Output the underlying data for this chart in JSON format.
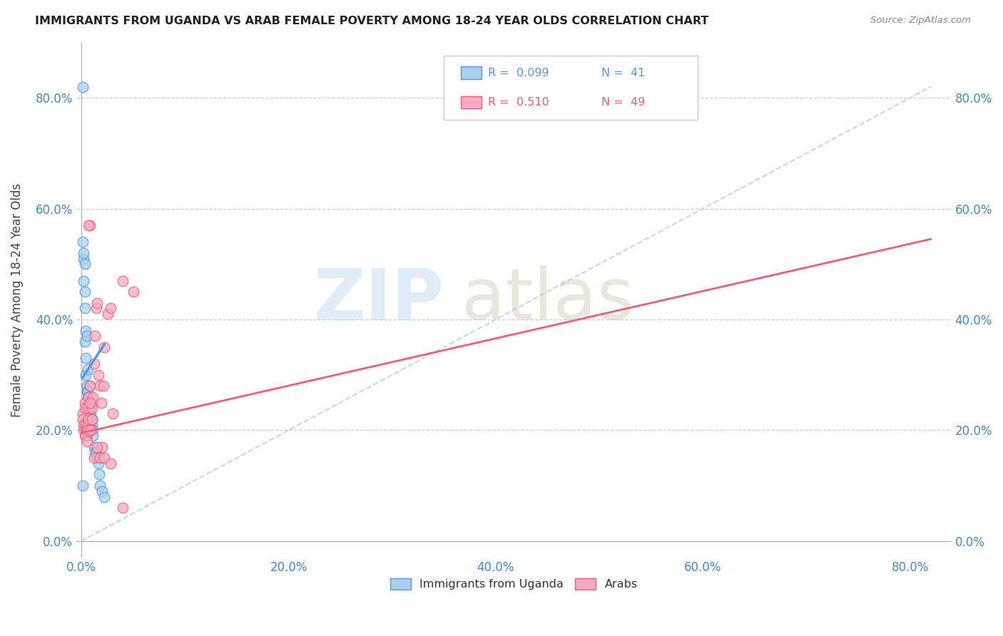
{
  "title": "IMMIGRANTS FROM UGANDA VS ARAB FEMALE POVERTY AMONG 18-24 YEAR OLDS CORRELATION CHART",
  "source": "Source: ZipAtlas.com",
  "xlabel_ticks": [
    "0.0%",
    "20.0%",
    "40.0%",
    "60.0%",
    "80.0%"
  ],
  "ylabel_ticks": [
    "0.0%",
    "20.0%",
    "40.0%",
    "60.0%",
    "80.0%"
  ],
  "xlabel_tick_vals": [
    0.0,
    0.2,
    0.4,
    0.6,
    0.8
  ],
  "ylabel_tick_vals": [
    0.0,
    0.2,
    0.4,
    0.6,
    0.8
  ],
  "xlim": [
    -0.005,
    0.84
  ],
  "ylim": [
    -0.03,
    0.9
  ],
  "legend_label1": "Immigrants from Uganda",
  "legend_label2": "Arabs",
  "R1": "0.099",
  "N1": "41",
  "R2": "0.510",
  "N2": "49",
  "color_uganda": "#aacfee",
  "color_arab": "#f5aac0",
  "line_color_uganda": "#5599dd",
  "line_color_arab": "#e8607a",
  "diag_line_color": "#c0d4ec",
  "ylabel": "Female Poverty Among 18-24 Year Olds",
  "uganda_x": [
    0.001,
    0.001,
    0.002,
    0.002,
    0.003,
    0.003,
    0.003,
    0.004,
    0.004,
    0.004,
    0.005,
    0.005,
    0.006,
    0.006,
    0.007,
    0.007,
    0.007,
    0.008,
    0.008,
    0.009,
    0.009,
    0.01,
    0.01,
    0.011,
    0.011,
    0.012,
    0.013,
    0.014,
    0.015,
    0.016,
    0.017,
    0.018,
    0.02,
    0.022,
    0.001,
    0.002,
    0.003,
    0.005,
    0.006,
    0.008,
    0.01
  ],
  "uganda_y": [
    0.82,
    0.1,
    0.51,
    0.52,
    0.5,
    0.45,
    0.36,
    0.38,
    0.33,
    0.3,
    0.28,
    0.27,
    0.27,
    0.26,
    0.25,
    0.25,
    0.24,
    0.24,
    0.23,
    0.23,
    0.22,
    0.22,
    0.21,
    0.2,
    0.19,
    0.17,
    0.16,
    0.16,
    0.15,
    0.14,
    0.12,
    0.1,
    0.09,
    0.08,
    0.54,
    0.47,
    0.42,
    0.37,
    0.31,
    0.28,
    0.22
  ],
  "arab_x": [
    0.001,
    0.001,
    0.002,
    0.002,
    0.003,
    0.003,
    0.004,
    0.004,
    0.005,
    0.005,
    0.006,
    0.006,
    0.007,
    0.007,
    0.008,
    0.008,
    0.009,
    0.01,
    0.01,
    0.011,
    0.012,
    0.013,
    0.014,
    0.015,
    0.016,
    0.018,
    0.019,
    0.02,
    0.021,
    0.022,
    0.025,
    0.028,
    0.03,
    0.04,
    0.05,
    0.003,
    0.004,
    0.005,
    0.006,
    0.007,
    0.008,
    0.009,
    0.01,
    0.012,
    0.015,
    0.018,
    0.022,
    0.028,
    0.04
  ],
  "arab_y": [
    0.23,
    0.22,
    0.21,
    0.2,
    0.25,
    0.24,
    0.21,
    0.2,
    0.19,
    0.2,
    0.21,
    0.24,
    0.22,
    0.26,
    0.57,
    0.28,
    0.2,
    0.25,
    0.24,
    0.26,
    0.32,
    0.37,
    0.42,
    0.43,
    0.3,
    0.28,
    0.25,
    0.17,
    0.28,
    0.35,
    0.41,
    0.42,
    0.23,
    0.47,
    0.45,
    0.19,
    0.19,
    0.18,
    0.2,
    0.57,
    0.25,
    0.2,
    0.22,
    0.15,
    0.17,
    0.15,
    0.15,
    0.14,
    0.06
  ],
  "uganda_trend_x": [
    0.001,
    0.022
  ],
  "uganda_trend_y": [
    0.295,
    0.355
  ],
  "arab_trend_x": [
    0.0,
    0.82
  ],
  "arab_trend_y": [
    0.195,
    0.545
  ],
  "diag_trend_x": [
    0.0,
    0.82
  ],
  "diag_trend_y": [
    0.0,
    0.82
  ]
}
